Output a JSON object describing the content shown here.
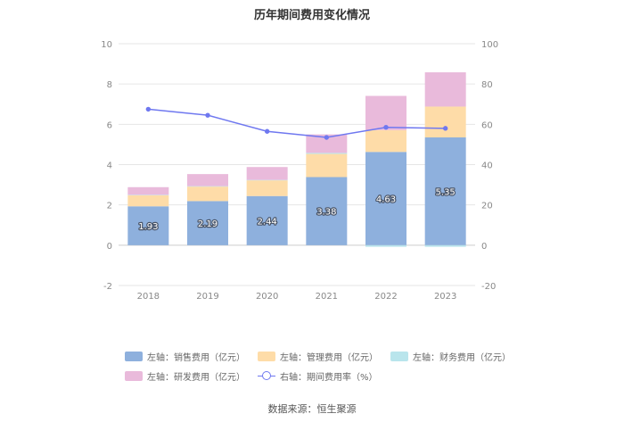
{
  "title": "历年期间费用变化情况",
  "source": "数据来源：恒生聚源",
  "chart_data": {
    "type": "bar",
    "stacked": true,
    "title": "历年期间费用变化情况",
    "categories": [
      "2018",
      "2019",
      "2020",
      "2021",
      "2022",
      "2023"
    ],
    "left_axis": {
      "ylim": [
        -2,
        10
      ],
      "ticks": [
        "-2",
        "0",
        "2",
        "4",
        "6",
        "8",
        "10"
      ]
    },
    "right_axis": {
      "ylim": [
        -20,
        100
      ],
      "ticks": [
        "-20",
        "0",
        "20",
        "40",
        "60",
        "80",
        "100"
      ]
    },
    "series": [
      {
        "name": "左轴：销售费用（亿元）",
        "axis": "left",
        "type": "bar",
        "color": "#8eb0dd",
        "values": [
          1.93,
          2.19,
          2.44,
          3.38,
          4.63,
          5.35
        ],
        "labels": [
          "1.93",
          "2.19",
          "2.44",
          "3.38",
          "4.63",
          "5.35"
        ]
      },
      {
        "name": "左轴：管理费用（亿元）",
        "axis": "left",
        "type": "bar",
        "color": "#fedca8",
        "values": [
          0.55,
          0.72,
          0.78,
          1.15,
          1.08,
          1.53
        ]
      },
      {
        "name": "左轴：财务费用（亿元）",
        "axis": "left",
        "type": "bar",
        "color": "#b9e5ec",
        "values": [
          0.02,
          0.02,
          0.02,
          0.05,
          -0.08,
          -0.08
        ]
      },
      {
        "name": "左轴：研发费用（亿元）",
        "axis": "left",
        "type": "bar",
        "color": "#e9badb",
        "values": [
          0.38,
          0.6,
          0.64,
          0.92,
          1.7,
          1.7
        ]
      },
      {
        "name": "右轴：期间费用率（%）",
        "axis": "right",
        "type": "line",
        "color": "#6f78f0",
        "values": [
          67.5,
          64.5,
          56.5,
          53.5,
          58.5,
          58.0
        ]
      }
    ]
  }
}
